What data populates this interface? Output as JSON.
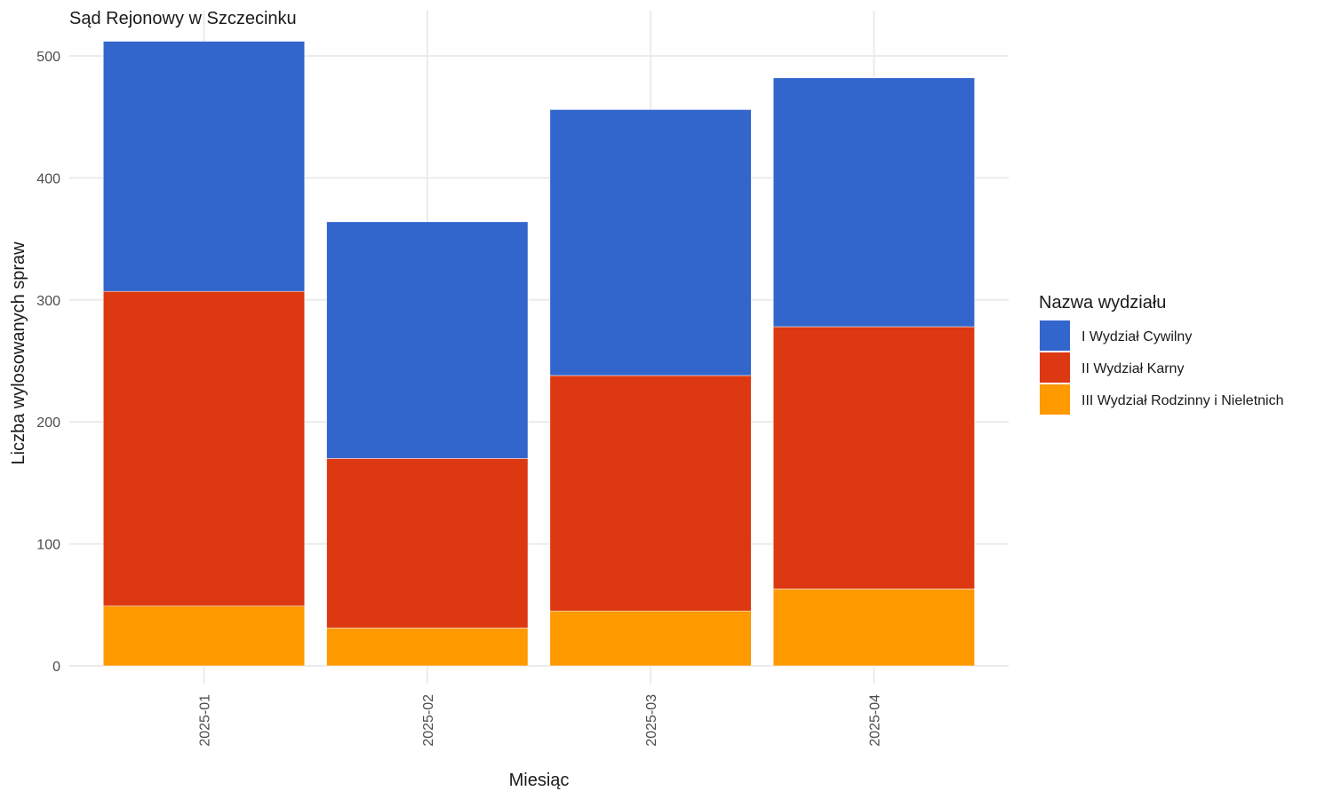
{
  "chart_data": {
    "type": "bar",
    "stacked": true,
    "title": "Sąd Rejonowy w Szczecinku",
    "xlabel": "Miesiąc",
    "ylabel": "Liczba wylosowanych spraw",
    "categories": [
      "2025-01",
      "2025-02",
      "2025-03",
      "2025-04"
    ],
    "ylim": [
      0,
      520
    ],
    "yticks": [
      0,
      100,
      200,
      300,
      400,
      500
    ],
    "grid": true,
    "legend": {
      "title": "Nazwa wydziału",
      "position": "right"
    },
    "series": [
      {
        "name": "I Wydział Cywilny",
        "color": "#3366cc",
        "values": [
          205,
          194,
          218,
          204
        ]
      },
      {
        "name": "II Wydział Karny",
        "color": "#dc3912",
        "values": [
          258,
          139,
          193,
          215
        ]
      },
      {
        "name": "III Wydział Rodzinny i Nieletnich",
        "color": "#ff9900",
        "values": [
          49,
          31,
          45,
          63
        ]
      }
    ]
  }
}
